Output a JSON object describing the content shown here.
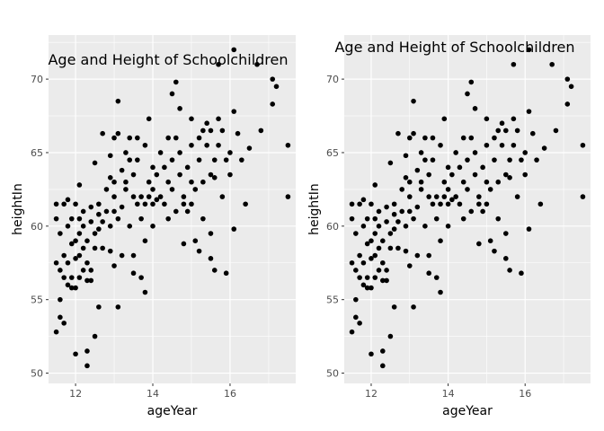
{
  "chart_data": [
    {
      "type": "scatter",
      "panel": "left",
      "annotation": "Age and Height of Schoolchildren",
      "xlabel": "ageYear",
      "ylabel": "heightIn",
      "xlim": [
        11.3,
        17.7
      ],
      "ylim": [
        49.3,
        73.0
      ],
      "xticks": [
        12,
        14,
        16
      ],
      "yticks": [
        50,
        55,
        60,
        65,
        70
      ],
      "xtick_labels": [
        "12",
        "14",
        "16"
      ],
      "ytick_labels": [
        "50",
        "55",
        "60",
        "65",
        "70"
      ],
      "grid": true,
      "point_color": "#000000",
      "panel_bg": "#ebebeb",
      "grid_color": "#ffffff",
      "points": [
        [
          11.5,
          57.5
        ],
        [
          11.5,
          61.5
        ],
        [
          11.5,
          60.5
        ],
        [
          11.6,
          55.0
        ],
        [
          11.6,
          57.0
        ],
        [
          11.5,
          52.8
        ],
        [
          11.6,
          53.8
        ],
        [
          11.7,
          53.4
        ],
        [
          11.6,
          59.5
        ],
        [
          11.7,
          61.5
        ],
        [
          11.7,
          58.0
        ],
        [
          11.7,
          56.5
        ],
        [
          11.8,
          61.8
        ],
        [
          11.8,
          56.0
        ],
        [
          11.8,
          57.5
        ],
        [
          11.8,
          60.0
        ],
        [
          11.9,
          55.8
        ],
        [
          11.9,
          58.8
        ],
        [
          11.9,
          60.5
        ],
        [
          11.9,
          56.5
        ],
        [
          12.0,
          61.5
        ],
        [
          12.0,
          59.0
        ],
        [
          12.0,
          57.8
        ],
        [
          12.0,
          51.3
        ],
        [
          12.1,
          62.8
        ],
        [
          12.0,
          55.8
        ],
        [
          12.1,
          58.0
        ],
        [
          12.1,
          59.5
        ],
        [
          12.1,
          60.5
        ],
        [
          12.1,
          56.5
        ],
        [
          12.2,
          57.0
        ],
        [
          12.2,
          58.5
        ],
        [
          12.2,
          60.0
        ],
        [
          12.2,
          61.0
        ],
        [
          12.3,
          56.3
        ],
        [
          12.3,
          57.5
        ],
        [
          12.3,
          59.0
        ],
        [
          12.3,
          50.5
        ],
        [
          12.3,
          51.5
        ],
        [
          12.4,
          60.3
        ],
        [
          12.4,
          61.3
        ],
        [
          12.4,
          57.0
        ],
        [
          12.4,
          56.3
        ],
        [
          12.5,
          58.5
        ],
        [
          12.5,
          59.5
        ],
        [
          12.5,
          64.3
        ],
        [
          12.5,
          52.5
        ],
        [
          12.6,
          60.8
        ],
        [
          12.6,
          61.5
        ],
        [
          12.6,
          54.5
        ],
        [
          12.6,
          59.8
        ],
        [
          12.7,
          58.5
        ],
        [
          12.7,
          66.3
        ],
        [
          12.7,
          60.3
        ],
        [
          12.8,
          61.0
        ],
        [
          12.8,
          62.5
        ],
        [
          12.9,
          63.3
        ],
        [
          12.9,
          60.0
        ],
        [
          12.9,
          64.8
        ],
        [
          12.9,
          58.3
        ],
        [
          13.0,
          66.0
        ],
        [
          13.0,
          62.0
        ],
        [
          13.0,
          61.0
        ],
        [
          13.0,
          57.3
        ],
        [
          13.0,
          63.0
        ],
        [
          13.1,
          66.3
        ],
        [
          13.1,
          68.5
        ],
        [
          13.1,
          60.5
        ],
        [
          13.1,
          54.5
        ],
        [
          13.2,
          63.8
        ],
        [
          13.2,
          61.3
        ],
        [
          13.2,
          58.0
        ],
        [
          13.3,
          63.0
        ],
        [
          13.3,
          65.0
        ],
        [
          13.3,
          62.5
        ],
        [
          13.4,
          64.5
        ],
        [
          13.4,
          60.0
        ],
        [
          13.4,
          66.0
        ],
        [
          13.5,
          63.5
        ],
        [
          13.5,
          62.0
        ],
        [
          13.5,
          58.0
        ],
        [
          13.5,
          56.8
        ],
        [
          13.6,
          61.5
        ],
        [
          13.6,
          64.5
        ],
        [
          13.6,
          66.0
        ],
        [
          13.7,
          62.0
        ],
        [
          13.7,
          60.5
        ],
        [
          13.7,
          56.5
        ],
        [
          13.8,
          61.5
        ],
        [
          13.8,
          59.0
        ],
        [
          13.8,
          65.5
        ],
        [
          13.8,
          55.5
        ],
        [
          13.9,
          67.3
        ],
        [
          13.9,
          62.0
        ],
        [
          13.9,
          63.0
        ],
        [
          14.0,
          61.5
        ],
        [
          14.0,
          62.5
        ],
        [
          14.0,
          60.0
        ],
        [
          14.0,
          64.0
        ],
        [
          14.1,
          61.8
        ],
        [
          14.1,
          63.5
        ],
        [
          14.2,
          65.0
        ],
        [
          14.2,
          62.0
        ],
        [
          14.3,
          61.5
        ],
        [
          14.3,
          64.0
        ],
        [
          14.4,
          66.0
        ],
        [
          14.4,
          63.0
        ],
        [
          14.4,
          60.5
        ],
        [
          14.5,
          69.0
        ],
        [
          14.5,
          64.5
        ],
        [
          14.5,
          62.5
        ],
        [
          14.6,
          69.8
        ],
        [
          14.6,
          66.0
        ],
        [
          14.6,
          61.0
        ],
        [
          14.7,
          65.0
        ],
        [
          14.7,
          68.0
        ],
        [
          14.7,
          63.5
        ],
        [
          14.8,
          61.5
        ],
        [
          14.8,
          62.0
        ],
        [
          14.8,
          58.8
        ],
        [
          14.9,
          64.0
        ],
        [
          14.9,
          61.0
        ],
        [
          15.0,
          63.0
        ],
        [
          15.0,
          65.5
        ],
        [
          15.0,
          67.3
        ],
        [
          15.0,
          61.5
        ],
        [
          15.1,
          59.0
        ],
        [
          15.1,
          62.5
        ],
        [
          15.2,
          66.0
        ],
        [
          15.2,
          64.5
        ],
        [
          15.2,
          58.3
        ],
        [
          15.3,
          63.0
        ],
        [
          15.3,
          66.5
        ],
        [
          15.3,
          60.5
        ],
        [
          15.4,
          67.0
        ],
        [
          15.4,
          65.5
        ],
        [
          15.5,
          63.5
        ],
        [
          15.5,
          66.5
        ],
        [
          15.5,
          59.5
        ],
        [
          15.5,
          57.8
        ],
        [
          15.6,
          64.5
        ],
        [
          15.6,
          57.0
        ],
        [
          15.6,
          63.3
        ],
        [
          15.7,
          67.3
        ],
        [
          15.7,
          71.0
        ],
        [
          15.7,
          65.5
        ],
        [
          15.8,
          66.5
        ],
        [
          15.8,
          62.0
        ],
        [
          15.9,
          56.8
        ],
        [
          15.9,
          64.5
        ],
        [
          16.0,
          65.0
        ],
        [
          16.0,
          63.5
        ],
        [
          16.1,
          72.0
        ],
        [
          16.1,
          59.8
        ],
        [
          16.1,
          67.8
        ],
        [
          16.2,
          66.3
        ],
        [
          16.3,
          64.5
        ],
        [
          16.4,
          61.5
        ],
        [
          16.5,
          65.3
        ],
        [
          16.7,
          71.0
        ],
        [
          16.8,
          66.5
        ],
        [
          17.1,
          70.0
        ],
        [
          17.1,
          68.3
        ],
        [
          17.2,
          69.5
        ],
        [
          17.5,
          65.5
        ],
        [
          17.5,
          62.0
        ]
      ]
    },
    {
      "type": "scatter",
      "panel": "right",
      "annotation": "Age and Height of Schoolchildren",
      "xlabel": "ageYear",
      "ylabel": "heightIn",
      "xlim": [
        11.3,
        17.7
      ],
      "ylim": [
        49.3,
        73.0
      ],
      "xticks": [
        12,
        14,
        16
      ],
      "yticks": [
        50,
        55,
        60,
        65,
        70
      ],
      "xtick_labels": [
        "12",
        "14",
        "16"
      ],
      "ytick_labels": [
        "50",
        "55",
        "60",
        "65",
        "70"
      ],
      "grid": true,
      "point_color": "#000000",
      "panel_bg": "#ebebeb",
      "grid_color": "#ffffff",
      "points": [
        [
          11.5,
          57.5
        ],
        [
          11.5,
          61.5
        ],
        [
          11.5,
          60.5
        ],
        [
          11.6,
          55.0
        ],
        [
          11.6,
          57.0
        ],
        [
          11.5,
          52.8
        ],
        [
          11.6,
          53.8
        ],
        [
          11.7,
          53.4
        ],
        [
          11.6,
          59.5
        ],
        [
          11.7,
          61.5
        ],
        [
          11.7,
          58.0
        ],
        [
          11.7,
          56.5
        ],
        [
          11.8,
          61.8
        ],
        [
          11.8,
          56.0
        ],
        [
          11.8,
          57.5
        ],
        [
          11.8,
          60.0
        ],
        [
          11.9,
          55.8
        ],
        [
          11.9,
          58.8
        ],
        [
          11.9,
          60.5
        ],
        [
          11.9,
          56.5
        ],
        [
          12.0,
          61.5
        ],
        [
          12.0,
          59.0
        ],
        [
          12.0,
          57.8
        ],
        [
          12.0,
          51.3
        ],
        [
          12.1,
          62.8
        ],
        [
          12.0,
          55.8
        ],
        [
          12.1,
          58.0
        ],
        [
          12.1,
          59.5
        ],
        [
          12.1,
          60.5
        ],
        [
          12.1,
          56.5
        ],
        [
          12.2,
          57.0
        ],
        [
          12.2,
          58.5
        ],
        [
          12.2,
          60.0
        ],
        [
          12.2,
          61.0
        ],
        [
          12.3,
          56.3
        ],
        [
          12.3,
          57.5
        ],
        [
          12.3,
          59.0
        ],
        [
          12.3,
          50.5
        ],
        [
          12.3,
          51.5
        ],
        [
          12.4,
          60.3
        ],
        [
          12.4,
          61.3
        ],
        [
          12.4,
          57.0
        ],
        [
          12.4,
          56.3
        ],
        [
          12.5,
          58.5
        ],
        [
          12.5,
          59.5
        ],
        [
          12.5,
          64.3
        ],
        [
          12.5,
          52.5
        ],
        [
          12.6,
          60.8
        ],
        [
          12.6,
          61.5
        ],
        [
          12.6,
          54.5
        ],
        [
          12.6,
          59.8
        ],
        [
          12.7,
          58.5
        ],
        [
          12.7,
          66.3
        ],
        [
          12.7,
          60.3
        ],
        [
          12.8,
          61.0
        ],
        [
          12.8,
          62.5
        ],
        [
          12.9,
          63.3
        ],
        [
          12.9,
          60.0
        ],
        [
          12.9,
          64.8
        ],
        [
          12.9,
          58.3
        ],
        [
          13.0,
          66.0
        ],
        [
          13.0,
          62.0
        ],
        [
          13.0,
          61.0
        ],
        [
          13.0,
          57.3
        ],
        [
          13.0,
          63.0
        ],
        [
          13.1,
          66.3
        ],
        [
          13.1,
          68.5
        ],
        [
          13.1,
          60.5
        ],
        [
          13.1,
          54.5
        ],
        [
          13.2,
          63.8
        ],
        [
          13.2,
          61.3
        ],
        [
          13.2,
          58.0
        ],
        [
          13.3,
          63.0
        ],
        [
          13.3,
          65.0
        ],
        [
          13.3,
          62.5
        ],
        [
          13.4,
          64.5
        ],
        [
          13.4,
          60.0
        ],
        [
          13.4,
          66.0
        ],
        [
          13.5,
          63.5
        ],
        [
          13.5,
          62.0
        ],
        [
          13.5,
          58.0
        ],
        [
          13.5,
          56.8
        ],
        [
          13.6,
          61.5
        ],
        [
          13.6,
          64.5
        ],
        [
          13.6,
          66.0
        ],
        [
          13.7,
          62.0
        ],
        [
          13.7,
          60.5
        ],
        [
          13.7,
          56.5
        ],
        [
          13.8,
          61.5
        ],
        [
          13.8,
          59.0
        ],
        [
          13.8,
          65.5
        ],
        [
          13.8,
          55.5
        ],
        [
          13.9,
          67.3
        ],
        [
          13.9,
          62.0
        ],
        [
          13.9,
          63.0
        ],
        [
          14.0,
          61.5
        ],
        [
          14.0,
          62.5
        ],
        [
          14.0,
          60.0
        ],
        [
          14.0,
          64.0
        ],
        [
          14.1,
          61.8
        ],
        [
          14.1,
          63.5
        ],
        [
          14.2,
          65.0
        ],
        [
          14.2,
          62.0
        ],
        [
          14.3,
          61.5
        ],
        [
          14.3,
          64.0
        ],
        [
          14.4,
          66.0
        ],
        [
          14.4,
          63.0
        ],
        [
          14.4,
          60.5
        ],
        [
          14.5,
          69.0
        ],
        [
          14.5,
          64.5
        ],
        [
          14.5,
          62.5
        ],
        [
          14.6,
          69.8
        ],
        [
          14.6,
          66.0
        ],
        [
          14.6,
          61.0
        ],
        [
          14.7,
          65.0
        ],
        [
          14.7,
          68.0
        ],
        [
          14.7,
          63.5
        ],
        [
          14.8,
          61.5
        ],
        [
          14.8,
          62.0
        ],
        [
          14.8,
          58.8
        ],
        [
          14.9,
          64.0
        ],
        [
          14.9,
          61.0
        ],
        [
          15.0,
          63.0
        ],
        [
          15.0,
          65.5
        ],
        [
          15.0,
          67.3
        ],
        [
          15.0,
          61.5
        ],
        [
          15.1,
          59.0
        ],
        [
          15.1,
          62.5
        ],
        [
          15.2,
          66.0
        ],
        [
          15.2,
          64.5
        ],
        [
          15.2,
          58.3
        ],
        [
          15.3,
          63.0
        ],
        [
          15.3,
          66.5
        ],
        [
          15.3,
          60.5
        ],
        [
          15.4,
          67.0
        ],
        [
          15.4,
          65.5
        ],
        [
          15.5,
          63.5
        ],
        [
          15.5,
          66.5
        ],
        [
          15.5,
          59.5
        ],
        [
          15.5,
          57.8
        ],
        [
          15.6,
          64.5
        ],
        [
          15.6,
          57.0
        ],
        [
          15.6,
          63.3
        ],
        [
          15.7,
          67.3
        ],
        [
          15.7,
          71.0
        ],
        [
          15.7,
          65.5
        ],
        [
          15.8,
          66.5
        ],
        [
          15.8,
          62.0
        ],
        [
          15.9,
          56.8
        ],
        [
          15.9,
          64.5
        ],
        [
          16.0,
          65.0
        ],
        [
          16.0,
          63.5
        ],
        [
          16.1,
          72.0
        ],
        [
          16.1,
          59.8
        ],
        [
          16.1,
          67.8
        ],
        [
          16.2,
          66.3
        ],
        [
          16.3,
          64.5
        ],
        [
          16.4,
          61.5
        ],
        [
          16.5,
          65.3
        ],
        [
          16.7,
          71.0
        ],
        [
          16.8,
          66.5
        ],
        [
          17.1,
          70.0
        ],
        [
          17.1,
          68.3
        ],
        [
          17.2,
          69.5
        ],
        [
          17.5,
          65.5
        ],
        [
          17.5,
          62.0
        ]
      ]
    }
  ]
}
